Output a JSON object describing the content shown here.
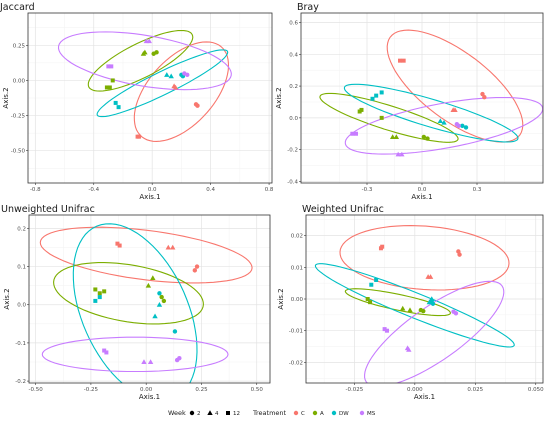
{
  "colors": {
    "C": "#F8766D",
    "A": "#7CAE00",
    "DW": "#00BFC4",
    "MS": "#C77CFF"
  },
  "legend": {
    "week_title": "Week",
    "weeks": [
      {
        "label": "2",
        "shape": "circle"
      },
      {
        "label": "4",
        "shape": "triangle"
      },
      {
        "label": "12",
        "shape": "square"
      }
    ],
    "treatment_title": "Treatment",
    "treatments": [
      "C",
      "A",
      "DW",
      "MS"
    ]
  },
  "chart_data": [
    {
      "type": "scatter",
      "title": "Jaccard",
      "xlabel": "Axis.1",
      "ylabel": "Axis.2",
      "xlim": [
        -0.85,
        0.82
      ],
      "ylim": [
        -0.73,
        0.48
      ],
      "xticks": [
        {
          "v": -0.8,
          "label": "-0.8"
        },
        {
          "v": -0.4,
          "label": "-0.4"
        },
        {
          "v": 0.0,
          "label": "0.0"
        },
        {
          "v": 0.4,
          "label": "0.4"
        },
        {
          "v": 0.8,
          "label": "0.8"
        }
      ],
      "yticks": [
        {
          "v": 0.25,
          "label": "0.25"
        },
        {
          "v": 0.0,
          "label": "0.00"
        },
        {
          "v": -0.25,
          "label": "-0.25"
        },
        {
          "v": -0.5,
          "label": "-0.50"
        }
      ],
      "ellipses": [
        {
          "group": "C",
          "cx": 0.2,
          "cy": -0.08,
          "rx": 0.42,
          "ry": 0.23,
          "angle": 50
        },
        {
          "group": "A",
          "cx": -0.08,
          "cy": 0.14,
          "rx": 0.4,
          "ry": 0.12,
          "angle": 28
        },
        {
          "group": "DW",
          "cx": 0.07,
          "cy": -0.02,
          "rx": 0.5,
          "ry": 0.08,
          "angle": 27
        },
        {
          "group": "MS",
          "cx": -0.05,
          "cy": 0.14,
          "rx": 0.6,
          "ry": 0.18,
          "angle": -10
        }
      ],
      "points": [
        {
          "g": "C",
          "s": "circle",
          "x": 0.3,
          "y": -0.17
        },
        {
          "g": "C",
          "s": "circle",
          "x": 0.31,
          "y": -0.18
        },
        {
          "g": "C",
          "s": "triangle",
          "x": 0.15,
          "y": -0.04
        },
        {
          "g": "C",
          "s": "triangle",
          "x": 0.16,
          "y": -0.05
        },
        {
          "g": "C",
          "s": "square",
          "x": -0.1,
          "y": -0.4
        },
        {
          "g": "C",
          "s": "square",
          "x": -0.09,
          "y": -0.4
        },
        {
          "g": "A",
          "s": "circle",
          "x": 0.01,
          "y": 0.19
        },
        {
          "g": "A",
          "s": "circle",
          "x": 0.03,
          "y": 0.2
        },
        {
          "g": "A",
          "s": "triangle",
          "x": -0.06,
          "y": 0.19
        },
        {
          "g": "A",
          "s": "triangle",
          "x": -0.05,
          "y": 0.2
        },
        {
          "g": "A",
          "s": "square",
          "x": -0.31,
          "y": -0.05
        },
        {
          "g": "A",
          "s": "square",
          "x": -0.29,
          "y": -0.05
        },
        {
          "g": "A",
          "s": "square",
          "x": -0.27,
          "y": 0.0
        },
        {
          "g": "DW",
          "s": "circle",
          "x": 0.2,
          "y": 0.04
        },
        {
          "g": "DW",
          "s": "circle",
          "x": 0.21,
          "y": 0.03
        },
        {
          "g": "DW",
          "s": "triangle",
          "x": 0.1,
          "y": 0.04
        },
        {
          "g": "DW",
          "s": "triangle",
          "x": 0.13,
          "y": 0.03
        },
        {
          "g": "DW",
          "s": "square",
          "x": -0.25,
          "y": -0.16
        },
        {
          "g": "DW",
          "s": "square",
          "x": -0.23,
          "y": -0.19
        },
        {
          "g": "MS",
          "s": "circle",
          "x": 0.22,
          "y": 0.05
        },
        {
          "g": "MS",
          "s": "circle",
          "x": 0.24,
          "y": 0.04
        },
        {
          "g": "MS",
          "s": "triangle",
          "x": -0.04,
          "y": 0.28
        },
        {
          "g": "MS",
          "s": "triangle",
          "x": -0.02,
          "y": 0.28
        },
        {
          "g": "MS",
          "s": "square",
          "x": -0.3,
          "y": 0.1
        },
        {
          "g": "MS",
          "s": "square",
          "x": -0.28,
          "y": 0.1
        }
      ]
    },
    {
      "type": "scatter",
      "title": "Bray",
      "xlabel": "Axis.1",
      "ylabel": "Axis.2",
      "xlim": [
        -0.66,
        0.66
      ],
      "ylim": [
        -0.41,
        0.66
      ],
      "xticks": [
        {
          "v": -0.3,
          "label": "-0.3"
        },
        {
          "v": 0.0,
          "label": "0.0"
        },
        {
          "v": 0.3,
          "label": "0.3"
        }
      ],
      "yticks": [
        {
          "v": 0.6,
          "label": "0.6"
        },
        {
          "v": 0.4,
          "label": "0.4"
        },
        {
          "v": 0.2,
          "label": "0.2"
        },
        {
          "v": 0.0,
          "label": "0.0"
        },
        {
          "v": -0.2,
          "label": "-0.2"
        },
        {
          "v": -0.4,
          "label": "-0.4"
        }
      ],
      "ellipses": [
        {
          "group": "C",
          "cx": 0.18,
          "cy": 0.2,
          "rx": 0.47,
          "ry": 0.2,
          "angle": -43
        },
        {
          "group": "A",
          "cx": -0.18,
          "cy": 0.0,
          "rx": 0.4,
          "ry": 0.075,
          "angle": -20
        },
        {
          "group": "DW",
          "cx": 0.05,
          "cy": 0.03,
          "rx": 0.5,
          "ry": 0.085,
          "angle": -19
        },
        {
          "group": "MS",
          "cx": 0.12,
          "cy": -0.05,
          "rx": 0.55,
          "ry": 0.14,
          "angle": 12
        }
      ],
      "points": [
        {
          "g": "C",
          "s": "circle",
          "x": 0.33,
          "y": 0.15
        },
        {
          "g": "C",
          "s": "circle",
          "x": 0.34,
          "y": 0.13
        },
        {
          "g": "C",
          "s": "triangle",
          "x": 0.17,
          "y": 0.05
        },
        {
          "g": "C",
          "s": "triangle",
          "x": 0.18,
          "y": 0.05
        },
        {
          "g": "C",
          "s": "square",
          "x": -0.12,
          "y": 0.36
        },
        {
          "g": "C",
          "s": "square",
          "x": -0.1,
          "y": 0.36
        },
        {
          "g": "A",
          "s": "circle",
          "x": 0.01,
          "y": -0.12
        },
        {
          "g": "A",
          "s": "circle",
          "x": 0.03,
          "y": -0.13
        },
        {
          "g": "A",
          "s": "triangle",
          "x": -0.16,
          "y": -0.12
        },
        {
          "g": "A",
          "s": "triangle",
          "x": -0.14,
          "y": -0.12
        },
        {
          "g": "A",
          "s": "square",
          "x": -0.34,
          "y": 0.04
        },
        {
          "g": "A",
          "s": "square",
          "x": -0.33,
          "y": 0.05
        },
        {
          "g": "A",
          "s": "square",
          "x": -0.22,
          "y": 0.0
        },
        {
          "g": "DW",
          "s": "circle",
          "x": 0.22,
          "y": -0.05
        },
        {
          "g": "DW",
          "s": "circle",
          "x": 0.24,
          "y": -0.06
        },
        {
          "g": "DW",
          "s": "triangle",
          "x": 0.1,
          "y": -0.02
        },
        {
          "g": "DW",
          "s": "triangle",
          "x": 0.12,
          "y": -0.03
        },
        {
          "g": "DW",
          "s": "square",
          "x": -0.27,
          "y": 0.12
        },
        {
          "g": "DW",
          "s": "square",
          "x": -0.25,
          "y": 0.14
        },
        {
          "g": "DW",
          "s": "square",
          "x": -0.22,
          "y": 0.16
        },
        {
          "g": "MS",
          "s": "circle",
          "x": 0.19,
          "y": -0.04
        },
        {
          "g": "MS",
          "s": "circle",
          "x": 0.2,
          "y": -0.05
        },
        {
          "g": "MS",
          "s": "triangle",
          "x": -0.13,
          "y": -0.23
        },
        {
          "g": "MS",
          "s": "triangle",
          "x": -0.11,
          "y": -0.23
        },
        {
          "g": "MS",
          "s": "square",
          "x": -0.38,
          "y": -0.1
        },
        {
          "g": "MS",
          "s": "square",
          "x": -0.36,
          "y": -0.1
        }
      ]
    },
    {
      "type": "scatter",
      "title": "Unweighted Unifrac",
      "xlabel": "Axis.1",
      "ylabel": "Axis.2",
      "xlim": [
        -0.53,
        0.56
      ],
      "ylim": [
        -0.205,
        0.235
      ],
      "xticks": [
        {
          "v": -0.5,
          "label": "-0.50"
        },
        {
          "v": -0.25,
          "label": "-0.25"
        },
        {
          "v": 0.0,
          "label": "0.00"
        },
        {
          "v": 0.25,
          "label": "0.25"
        },
        {
          "v": 0.5,
          "label": "0.50"
        }
      ],
      "yticks": [
        {
          "v": 0.2,
          "label": "0.2"
        },
        {
          "v": 0.1,
          "label": "0.1"
        },
        {
          "v": 0.0,
          "label": "0.0"
        },
        {
          "v": -0.1,
          "label": "-0.1"
        },
        {
          "v": -0.2,
          "label": "-0.2"
        }
      ],
      "ellipses": [
        {
          "group": "C",
          "cx": 0.0,
          "cy": 0.13,
          "rx": 0.48,
          "ry": 0.065,
          "angle": -4
        },
        {
          "group": "A",
          "cx": -0.08,
          "cy": 0.03,
          "rx": 0.34,
          "ry": 0.075,
          "angle": -5
        },
        {
          "group": "DW",
          "cx": -0.05,
          "cy": -0.02,
          "rx": 0.31,
          "ry": 0.19,
          "angle": -33
        },
        {
          "group": "MS",
          "cx": -0.05,
          "cy": -0.13,
          "rx": 0.42,
          "ry": 0.045,
          "angle": 0
        }
      ],
      "points": [
        {
          "g": "C",
          "s": "circle",
          "x": 0.22,
          "y": 0.09
        },
        {
          "g": "C",
          "s": "circle",
          "x": 0.23,
          "y": 0.1
        },
        {
          "g": "C",
          "s": "triangle",
          "x": 0.1,
          "y": 0.15
        },
        {
          "g": "C",
          "s": "triangle",
          "x": 0.12,
          "y": 0.15
        },
        {
          "g": "C",
          "s": "square",
          "x": -0.13,
          "y": 0.16
        },
        {
          "g": "C",
          "s": "square",
          "x": -0.12,
          "y": 0.155
        },
        {
          "g": "A",
          "s": "circle",
          "x": 0.07,
          "y": 0.02
        },
        {
          "g": "A",
          "s": "circle",
          "x": 0.08,
          "y": 0.01
        },
        {
          "g": "A",
          "s": "triangle",
          "x": 0.01,
          "y": 0.05
        },
        {
          "g": "A",
          "s": "triangle",
          "x": 0.03,
          "y": 0.07
        },
        {
          "g": "A",
          "s": "square",
          "x": -0.23,
          "y": 0.04
        },
        {
          "g": "A",
          "s": "square",
          "x": -0.21,
          "y": 0.03
        },
        {
          "g": "A",
          "s": "square",
          "x": -0.19,
          "y": 0.035
        },
        {
          "g": "DW",
          "s": "circle",
          "x": 0.13,
          "y": -0.07
        },
        {
          "g": "DW",
          "s": "circle",
          "x": 0.06,
          "y": 0.03
        },
        {
          "g": "DW",
          "s": "triangle",
          "x": 0.04,
          "y": -0.03
        },
        {
          "g": "DW",
          "s": "triangle",
          "x": 0.06,
          "y": 0.0
        },
        {
          "g": "DW",
          "s": "square",
          "x": -0.23,
          "y": 0.01
        },
        {
          "g": "DW",
          "s": "square",
          "x": -0.21,
          "y": 0.02
        },
        {
          "g": "MS",
          "s": "circle",
          "x": 0.15,
          "y": -0.14
        },
        {
          "g": "MS",
          "s": "circle",
          "x": 0.14,
          "y": -0.145
        },
        {
          "g": "MS",
          "s": "triangle",
          "x": -0.01,
          "y": -0.15
        },
        {
          "g": "MS",
          "s": "triangle",
          "x": 0.02,
          "y": -0.15
        },
        {
          "g": "MS",
          "s": "square",
          "x": -0.19,
          "y": -0.12
        },
        {
          "g": "MS",
          "s": "square",
          "x": -0.18,
          "y": -0.125
        }
      ]
    },
    {
      "type": "scatter",
      "title": "Weighted Unifrac",
      "xlabel": "Axis.1",
      "ylabel": "Axis.2",
      "xlim": [
        -0.045,
        0.053
      ],
      "ylim": [
        -0.0265,
        0.0265
      ],
      "xticks": [
        {
          "v": -0.025,
          "label": "-0.025"
        },
        {
          "v": 0.0,
          "label": "0.000"
        },
        {
          "v": 0.025,
          "label": "0.025"
        },
        {
          "v": 0.05,
          "label": "0.050"
        }
      ],
      "yticks": [
        {
          "v": 0.02,
          "label": "0.02"
        },
        {
          "v": 0.01,
          "label": "0.01"
        },
        {
          "v": 0.0,
          "label": "0.00"
        },
        {
          "v": -0.01,
          "label": "-0.01"
        },
        {
          "v": -0.02,
          "label": "-0.02"
        }
      ],
      "ellipses": [
        {
          "group": "C",
          "cx": 0.004,
          "cy": 0.013,
          "rx": 0.035,
          "ry": 0.01,
          "angle": -3
        },
        {
          "group": "A",
          "cx": -0.007,
          "cy": -0.001,
          "rx": 0.022,
          "ry": 0.0025,
          "angle": -9
        },
        {
          "group": "DW",
          "cx": 0.0,
          "cy": -0.002,
          "rx": 0.043,
          "ry": 0.004,
          "angle": -17
        },
        {
          "group": "MS",
          "cx": 0.008,
          "cy": -0.011,
          "rx": 0.032,
          "ry": 0.009,
          "angle": 27
        }
      ],
      "points": [
        {
          "g": "C",
          "s": "circle",
          "x": 0.018,
          "y": 0.015
        },
        {
          "g": "C",
          "s": "circle",
          "x": 0.0185,
          "y": 0.014
        },
        {
          "g": "C",
          "s": "triangle",
          "x": 0.0055,
          "y": 0.007
        },
        {
          "g": "C",
          "s": "triangle",
          "x": 0.0065,
          "y": 0.007
        },
        {
          "g": "C",
          "s": "square",
          "x": -0.014,
          "y": 0.016
        },
        {
          "g": "C",
          "s": "square",
          "x": -0.0135,
          "y": 0.0165
        },
        {
          "g": "A",
          "s": "circle",
          "x": 0.0025,
          "y": -0.0035
        },
        {
          "g": "A",
          "s": "circle",
          "x": 0.0035,
          "y": -0.0038
        },
        {
          "g": "A",
          "s": "triangle",
          "x": -0.005,
          "y": -0.003
        },
        {
          "g": "A",
          "s": "triangle",
          "x": -0.002,
          "y": -0.0035
        },
        {
          "g": "A",
          "s": "square",
          "x": -0.0195,
          "y": 0.0
        },
        {
          "g": "A",
          "s": "square",
          "x": -0.0185,
          "y": -0.001
        },
        {
          "g": "DW",
          "s": "circle",
          "x": 0.007,
          "y": -0.0005
        },
        {
          "g": "DW",
          "s": "circle",
          "x": 0.0075,
          "y": -0.0015
        },
        {
          "g": "DW",
          "s": "triangle",
          "x": 0.006,
          "y": -0.001
        },
        {
          "g": "DW",
          "s": "triangle",
          "x": 0.007,
          "y": 0.0
        },
        {
          "g": "DW",
          "s": "square",
          "x": -0.018,
          "y": 0.0045
        },
        {
          "g": "DW",
          "s": "square",
          "x": -0.016,
          "y": 0.006
        },
        {
          "g": "MS",
          "s": "circle",
          "x": 0.016,
          "y": -0.004
        },
        {
          "g": "MS",
          "s": "circle",
          "x": 0.017,
          "y": -0.0045
        },
        {
          "g": "MS",
          "s": "triangle",
          "x": -0.003,
          "y": -0.0155
        },
        {
          "g": "MS",
          "s": "triangle",
          "x": -0.0025,
          "y": -0.016
        },
        {
          "g": "MS",
          "s": "square",
          "x": -0.0125,
          "y": -0.0095
        },
        {
          "g": "MS",
          "s": "square",
          "x": -0.0115,
          "y": -0.01
        }
      ]
    }
  ]
}
